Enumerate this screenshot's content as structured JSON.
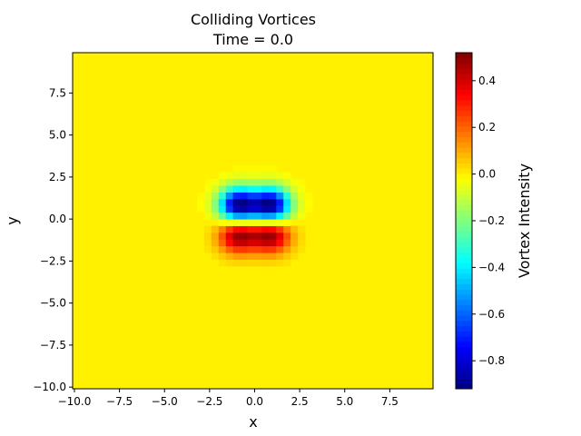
{
  "chart_data": {
    "type": "heatmap",
    "title": "Colliding Vortices",
    "subtitle": "Time = 0.0",
    "xlabel": "x",
    "ylabel": "y",
    "xlim": [
      -10.1,
      9.9
    ],
    "ylim": [
      -10.1,
      9.9
    ],
    "grid": false,
    "cell_size": 0.4,
    "background_value": 0.0,
    "x_ticks": [
      "−10.0",
      "−7.5",
      "−5.0",
      "−2.5",
      "0.0",
      "2.5",
      "5.0",
      "7.5"
    ],
    "x_tick_values": [
      -10.0,
      -7.5,
      -5.0,
      -2.5,
      0.0,
      2.5,
      5.0,
      7.5
    ],
    "y_ticks": [
      "−10.0",
      "−7.5",
      "−5.0",
      "−2.5",
      "0.0",
      "2.5",
      "5.0",
      "7.5"
    ],
    "y_tick_values": [
      -10.0,
      -7.5,
      -5.0,
      -2.5,
      0.0,
      2.5,
      5.0,
      7.5
    ],
    "vortices": [
      {
        "x": -0.9,
        "y": 0.8,
        "strength": -0.92,
        "sigma": 0.75
      },
      {
        "x": 0.9,
        "y": 0.8,
        "strength": -0.92,
        "sigma": 0.75
      },
      {
        "x": -0.9,
        "y": -0.9,
        "strength": 0.52,
        "sigma": 0.75
      },
      {
        "x": 0.9,
        "y": -0.9,
        "strength": 0.52,
        "sigma": 0.75
      }
    ],
    "colorbar": {
      "label": "Vortex Intensity",
      "vmin": -0.92,
      "vmax": 0.52,
      "tick_values": [
        -0.8,
        -0.6,
        -0.4,
        -0.2,
        0.0,
        0.2,
        0.4
      ],
      "tick_labels": [
        "−0.8",
        "−0.6",
        "−0.4",
        "−0.2",
        "0.0",
        "0.2",
        "0.4"
      ],
      "colormap": "jet"
    }
  }
}
